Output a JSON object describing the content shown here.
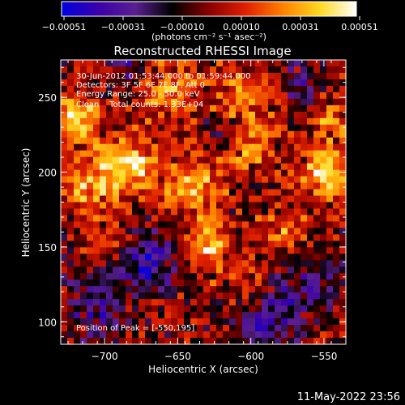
{
  "chart_data": {
    "type": "heatmap",
    "title": "Reconstructed RHESSI Image",
    "xlabel": "Heliocentric X (arcsec)",
    "ylabel": "Heliocentric Y (arcsec)",
    "xlim": [
      -730,
      -535
    ],
    "ylim": [
      85,
      275
    ],
    "x_ticks": [
      -700,
      -650,
      -600,
      -550
    ],
    "x_tick_labels": [
      "−700",
      "−650",
      "−600",
      "−550"
    ],
    "y_ticks": [
      100,
      150,
      200,
      250
    ],
    "y_tick_labels": [
      "100",
      "150",
      "200",
      "250"
    ],
    "colorbar": {
      "tick_labels": [
        "−0.00051",
        "−0.00031",
        "−0.00010",
        "0.00010",
        "0.00031",
        "0.00051"
      ],
      "units_text": "(photons cm⁻² s⁻¹ asec⁻²)",
      "range": [
        -0.00051,
        0.00051
      ],
      "colors": [
        "#0000e0",
        "#3a00a8",
        "#5a2090",
        "#000000",
        "#8a0000",
        "#e02000",
        "#ff8000",
        "#ffd820",
        "#ffffff"
      ]
    },
    "annotations": [
      "30-Jun-2012 01:53:44.000 to 01:59:44.000",
      "Detectors: 3F 5F 6F 7F 8F, Att 0",
      "Energy Range: 25.0 - 50.0 keV",
      "Clean    Total counts: 1.33E+04"
    ],
    "peak_label": "Position of Peak = [-550,195]",
    "peak_position": [
      -550,
      195
    ],
    "hot_spots": [
      {
        "x": -550,
        "y": 200,
        "sigma": 10,
        "value": 0.00051
      },
      {
        "x": -685,
        "y": 205,
        "sigma": 14,
        "value": 0.00042
      },
      {
        "x": -722,
        "y": 235,
        "sigma": 12,
        "value": 0.0004
      },
      {
        "x": -712,
        "y": 190,
        "sigma": 12,
        "value": 0.00028
      },
      {
        "x": -640,
        "y": 190,
        "sigma": 14,
        "value": 0.0003
      },
      {
        "x": -655,
        "y": 255,
        "sigma": 13,
        "value": 0.00028
      },
      {
        "x": -605,
        "y": 250,
        "sigma": 14,
        "value": 0.00025
      },
      {
        "x": -630,
        "y": 150,
        "sigma": 11,
        "value": 0.00035
      },
      {
        "x": -600,
        "y": 215,
        "sigma": 11,
        "value": 0.0002
      },
      {
        "x": -575,
        "y": 160,
        "sigma": 12,
        "value": 0.0002
      },
      {
        "x": -700,
        "y": 155,
        "sigma": 10,
        "value": 0.00015
      },
      {
        "x": -600,
        "y": 120,
        "sigma": 9,
        "value": 0.00018
      },
      {
        "x": -545,
        "y": 235,
        "sigma": 9,
        "value": 0.00022
      }
    ],
    "cold_spots": [
      {
        "x": -670,
        "y": 140,
        "sigma": 13,
        "value": -0.00035
      },
      {
        "x": -705,
        "y": 110,
        "sigma": 14,
        "value": -0.00025
      },
      {
        "x": -590,
        "y": 100,
        "sigma": 14,
        "value": -0.0003
      },
      {
        "x": -560,
        "y": 125,
        "sigma": 14,
        "value": -0.00025
      },
      {
        "x": -685,
        "y": 270,
        "sigma": 10,
        "value": -0.0002
      },
      {
        "x": -565,
        "y": 260,
        "sigma": 10,
        "value": -0.00018
      },
      {
        "x": -620,
        "y": 230,
        "sigma": 8,
        "value": -0.00015
      }
    ],
    "grid": false
  },
  "footer": {
    "date_text": "11-May-2022 23:56"
  }
}
